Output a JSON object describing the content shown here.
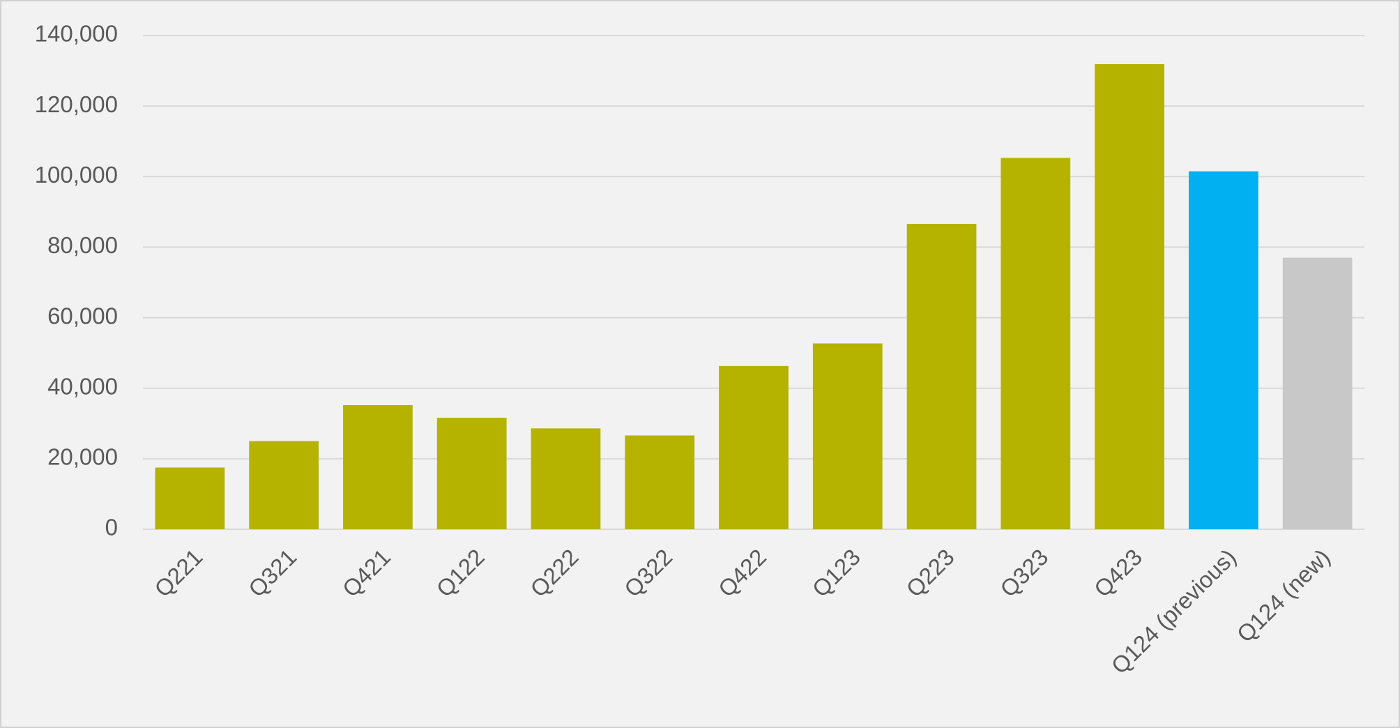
{
  "chart_data": {
    "type": "bar",
    "categories": [
      "Q221",
      "Q321",
      "Q421",
      "Q122",
      "Q222",
      "Q322",
      "Q422",
      "Q123",
      "Q223",
      "Q323",
      "Q423",
      "Q124 (previous)",
      "Q124 (new)"
    ],
    "values": [
      17500,
      25000,
      35200,
      31600,
      28600,
      26600,
      46300,
      52700,
      86600,
      105300,
      131900,
      101500,
      77000
    ],
    "colors": [
      "#b5b300",
      "#b5b300",
      "#b5b300",
      "#b5b300",
      "#b5b300",
      "#b5b300",
      "#b5b300",
      "#b5b300",
      "#b5b300",
      "#b5b300",
      "#b5b300",
      "#00b0f0",
      "#c8c8c8"
    ],
    "ylim": [
      0,
      140000
    ],
    "yticks": [
      0,
      {
        "value": 20000,
        "label": "20,000"
      },
      {
        "value": 40000,
        "label": "40,000"
      },
      {
        "value": 60000,
        "label": "60,000"
      },
      {
        "value": 80000,
        "label": "80,000"
      },
      {
        "value": 100000,
        "label": "100,000"
      },
      {
        "value": 120000,
        "label": "120,000"
      },
      {
        "value": 140000,
        "label": "140,000"
      }
    ],
    "grid": true
  }
}
